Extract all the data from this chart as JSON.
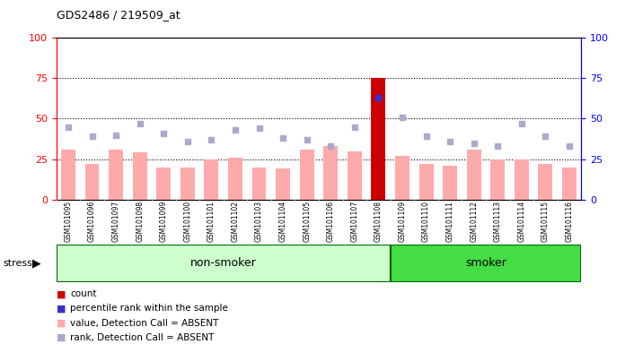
{
  "title": "GDS2486 / 219509_at",
  "samples": [
    "GSM101095",
    "GSM101096",
    "GSM101097",
    "GSM101098",
    "GSM101099",
    "GSM101100",
    "GSM101101",
    "GSM101102",
    "GSM101103",
    "GSM101104",
    "GSM101105",
    "GSM101106",
    "GSM101107",
    "GSM101108",
    "GSM101109",
    "GSM101110",
    "GSM101111",
    "GSM101112",
    "GSM101113",
    "GSM101114",
    "GSM101115",
    "GSM101116"
  ],
  "bar_values": [
    31,
    22,
    31,
    29,
    20,
    20,
    25,
    26,
    20,
    19,
    31,
    33,
    30,
    75,
    27,
    22,
    21,
    31,
    25,
    25,
    22,
    20
  ],
  "rank_values": [
    45,
    39,
    40,
    47,
    41,
    36,
    37,
    43,
    44,
    38,
    37,
    33,
    45,
    63,
    51,
    39,
    36,
    35,
    33,
    47,
    39,
    33
  ],
  "bar_colors_normal": "#ffaaaa",
  "bar_color_special": "#cc0000",
  "rank_color_normal": "#aaaacc",
  "rank_color_special": "#3333cc",
  "special_index": 13,
  "non_smoker_count": 14,
  "smoker_count": 8,
  "non_smoker_color": "#ccffcc",
  "smoker_color": "#44dd44",
  "group_bar_color": "#006600",
  "ylim_left": [
    0,
    100
  ],
  "ylim_right": [
    0,
    100
  ],
  "yticks": [
    0,
    25,
    50,
    75,
    100
  ],
  "grid_lines": [
    25,
    50,
    75
  ],
  "background_color": "#ffffff",
  "plot_bg_color": "#ffffff",
  "tick_area_color": "#cccccc"
}
